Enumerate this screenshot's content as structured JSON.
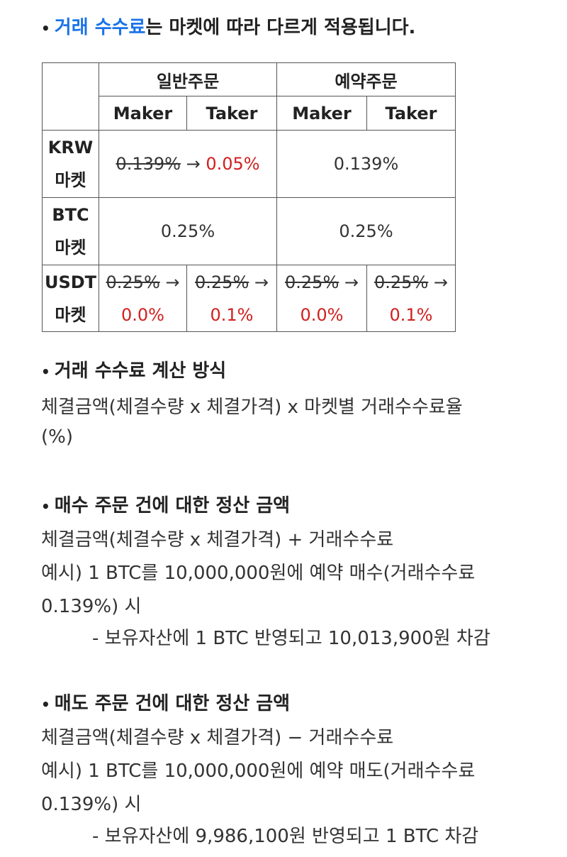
{
  "section1": {
    "bullet": "•",
    "link_text": "거래 수수료",
    "rest_text": "는 마켓에 따라 다르게 적용됩니다."
  },
  "table": {
    "group_headers": [
      "일반주문",
      "예약주문"
    ],
    "sub_headers": [
      "Maker",
      "Taker",
      "Maker",
      "Taker"
    ],
    "rows": {
      "krw": {
        "label_line1": "KRW",
        "label_line2": "마켓",
        "normal_old": "0.139%",
        "normal_arrow": "→",
        "normal_new": "0.05%",
        "reserved": "0.139%"
      },
      "btc": {
        "label_line1": "BTC",
        "label_line2": "마켓",
        "normal": "0.25%",
        "reserved": "0.25%"
      },
      "usdt": {
        "label_line1": "USDT",
        "label_line2": "마켓",
        "cells": [
          {
            "old": "0.25%",
            "arrow": "→",
            "new": "0.0%"
          },
          {
            "old": "0.25%",
            "arrow": "→",
            "new": "0.1%"
          },
          {
            "old": "0.25%",
            "arrow": "→",
            "new": "0.0%"
          },
          {
            "old": "0.25%",
            "arrow": "→",
            "new": "0.1%"
          }
        ]
      }
    }
  },
  "section2": {
    "bullet": "•",
    "title": "거래 수수료 계산 방식",
    "line1": "체결금액(체결수량 x 체결가격) x 마켓별 거래수수료율",
    "line2": "(%)"
  },
  "section3": {
    "bullet": "•",
    "title": "매수 주문 건에 대한 정산 금액",
    "line1": "체결금액(체결수량 x 체결가격) + 거래수수료",
    "line2": "예시) 1 BTC를 10,000,000원에 예약 매수(거래수수료",
    "line3": "0.139%) 시",
    "line4": "- 보유자산에 1 BTC 반영되고 10,013,900원 차감"
  },
  "section4": {
    "bullet": "•",
    "title": "매도 주문 건에 대한 정산 금액",
    "line1": "체결금액(체결수량 x 체결가격) − 거래수수료",
    "line2": "예시) 1 BTC를 10,000,000원에 예약 매도(거래수수료",
    "line3": "0.139%) 시",
    "line4": "- 보유자산에 9,986,100원 반영되고 1 BTC 차감"
  },
  "colors": {
    "link": "#1a73e8",
    "highlight_red": "#d0201f",
    "border": "#555555"
  }
}
